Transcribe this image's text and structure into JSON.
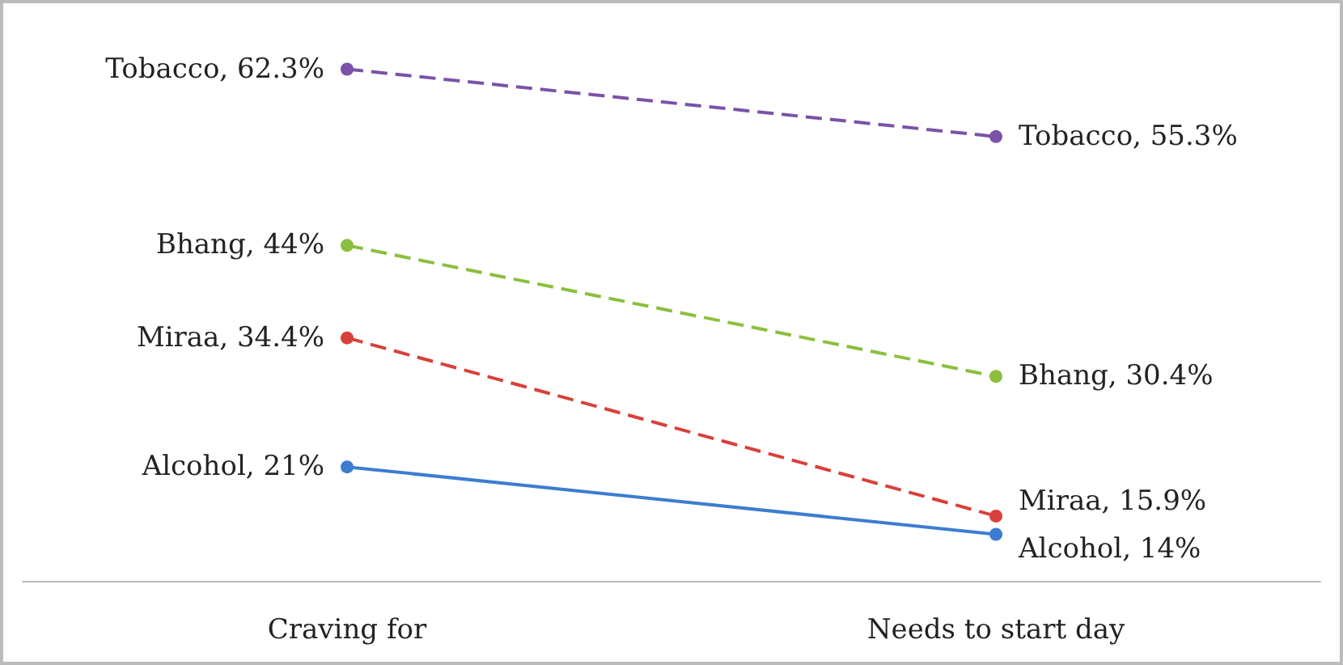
{
  "chart_data": {
    "type": "line",
    "categories": [
      "Craving for",
      "Needs to start day"
    ],
    "marker": "circle",
    "grid": false,
    "series": [
      {
        "color": "#7b52a8",
        "line_style": "dashed",
        "values": [
          62.3,
          55.3
        ],
        "value_labels": [
          "Tobacco, 62.3%",
          "Tobacco, 55.3%"
        ]
      },
      {
        "color": "#8cbf3f",
        "line_style": "dashed",
        "values": [
          44,
          30.4
        ],
        "value_labels": [
          "Bhang, 44%",
          "Bhang, 30.4%"
        ]
      },
      {
        "color": "#d9403a",
        "line_style": "dashed",
        "values": [
          34.4,
          15.9
        ],
        "value_labels": [
          "Miraa, 34.4%",
          "Miraa, 15.9%"
        ]
      },
      {
        "color": "#3c7dd0",
        "line_style": "solid",
        "values": [
          21,
          14
        ],
        "value_labels": [
          "Alcohol, 21%",
          "Alcohol, 14%"
        ]
      }
    ]
  }
}
